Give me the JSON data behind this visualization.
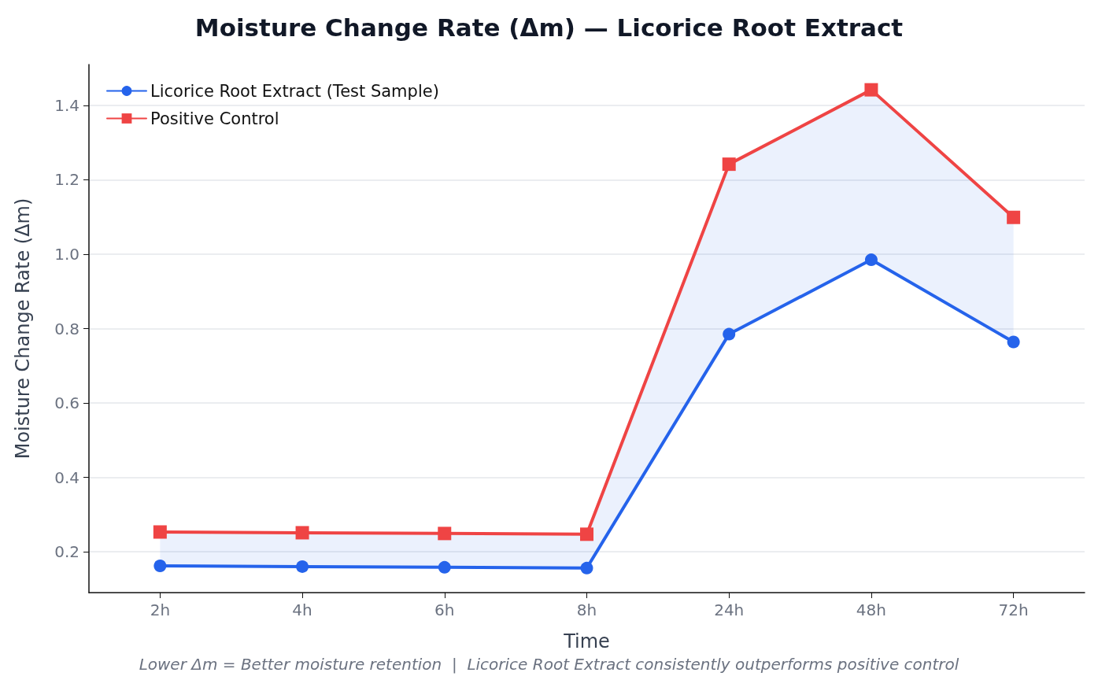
{
  "chart_data": {
    "type": "line",
    "title": "Moisture Change Rate (Δm) — Licorice Root Extract",
    "xlabel": "Time",
    "ylabel": "Moisture Change Rate (Δm)",
    "categories": [
      "2h",
      "4h",
      "6h",
      "8h",
      "24h",
      "48h",
      "72h"
    ],
    "series": [
      {
        "name": "Licorice Root Extract (Test Sample)",
        "color": "#2563eb",
        "marker": "circle",
        "values": [
          0.162,
          0.16,
          0.158,
          0.156,
          0.785,
          0.985,
          0.764
        ],
        "lower": [
          0.162,
          0.16,
          0.158,
          0.156,
          0.785,
          0.985,
          0.764
        ],
        "upper": [
          0.253,
          0.251,
          0.249,
          0.247,
          1.242,
          1.442,
          1.099
        ]
      },
      {
        "name": "Positive Control",
        "color": "#ef4444",
        "marker": "square",
        "values": [
          0.253,
          0.251,
          0.249,
          0.247,
          1.242,
          1.442,
          1.099
        ]
      }
    ],
    "ylim": [
      0.09,
      1.51
    ],
    "yticks": [
      0.2,
      0.4,
      0.6,
      0.8,
      {
        "value": 1,
        "label": "1.0"
      },
      1.2,
      1.4
    ],
    "grid": "y",
    "legend": "top left",
    "line_style": "solid",
    "annotations": [
      "Lower Δm = Better moisture retention  |  Licorice Root Extract consistently outperforms positive control"
    ]
  }
}
